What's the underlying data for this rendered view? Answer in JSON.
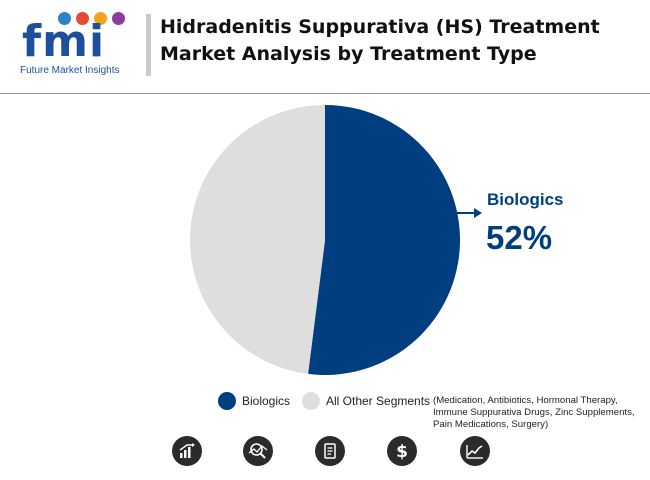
{
  "header": {
    "logo_letters": "fmi",
    "logo_tagline": "Future Market Insights",
    "title": "Hidradenitis Suppurativa (HS) Treatment Market Analysis by Treatment Type"
  },
  "colors": {
    "brand_blue": "#1e4f9a",
    "biologics": "#003f7f",
    "other_segments": "#dedede",
    "icon_dark": "#2b2b2b"
  },
  "chart_data": {
    "type": "pie",
    "title": "",
    "slices": [
      {
        "label": "Biologics",
        "value": 52,
        "color": "#003f7f"
      },
      {
        "label": "All Other Segments",
        "value": 48,
        "color": "#dedede"
      }
    ],
    "callout": {
      "label": "Biologics",
      "value_text": "52%"
    }
  },
  "legend": {
    "items": [
      {
        "label": "Biologics",
        "color": "#003f7f"
      },
      {
        "label": "All Other Segments",
        "color": "#dedede"
      }
    ],
    "note": "(Medication, Antibiotics, Hormonal Therapy, Immune Suppurativa Drugs, Zinc Supplements, Pain Medications, Surgery)"
  },
  "footer_icons": [
    "bar-chart-growth-icon",
    "magnifier-trend-icon",
    "report-document-icon",
    "dollar-icon",
    "line-chart-icon"
  ]
}
